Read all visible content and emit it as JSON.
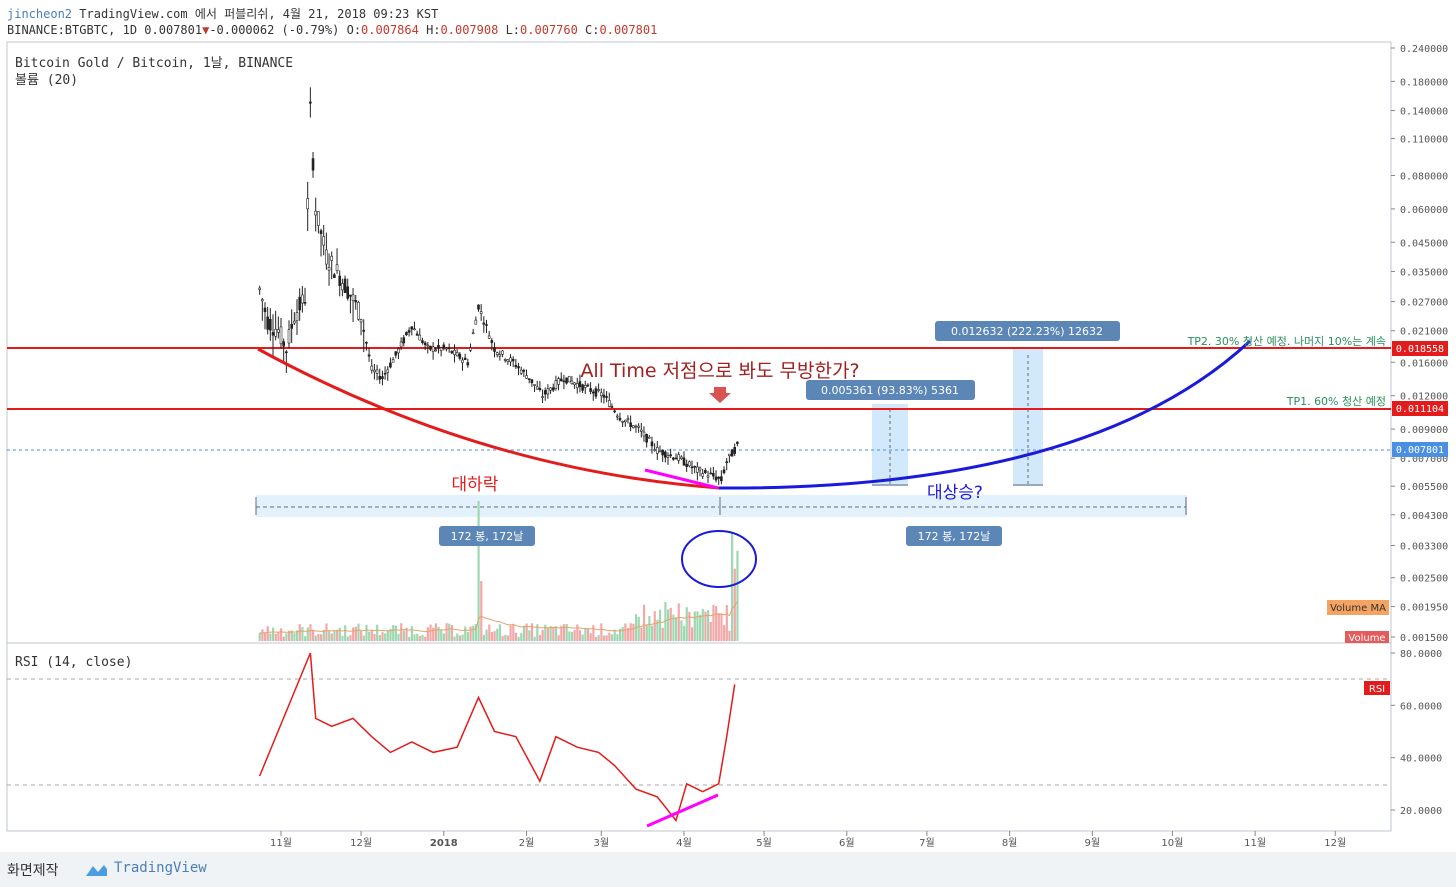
{
  "header": {
    "author": "jincheon2",
    "published": "TradingView.com 에서 퍼블리쉬, 4월 21, 2018 09:23 KST",
    "symbol": "BINANCE:BTGBTC, 1D",
    "last": "0.007801",
    "down_arrow": "▼",
    "change": "-0.000062 (-0.79%)",
    "o_label": "O:",
    "o": "0.007864",
    "h_label": "H:",
    "h": "0.007908",
    "l_label": "L:",
    "l": "0.007760",
    "c_label": "C:",
    "c": "0.007801"
  },
  "legend": {
    "title": "Bitcoin Gold / Bitcoin, 1날, BINANCE",
    "volume": "볼륨 (20)",
    "rsi": "RSI (14, close)"
  },
  "footer": {
    "made_with": "화면제작",
    "brand": "TradingView"
  },
  "colors": {
    "up": "#333333",
    "down": "#333333",
    "resistance": "#e31b1b",
    "curve_down": "#e31b1b",
    "curve_up": "#1a1adb",
    "rsi": "#e31b1b",
    "divergence": "#ff00ff",
    "measure": "#bfe0fa",
    "label_bg": "#5b86b6"
  },
  "chart_data": [
    {
      "type": "candlestick",
      "title": "Bitcoin Gold / Bitcoin, 1날, BINANCE",
      "y_scale": "log",
      "y_ticks": [
        "0.240000",
        "0.180000",
        "0.140000",
        "0.110000",
        "0.080000",
        "0.060000",
        "0.045000",
        "0.035000",
        "0.027000",
        "0.021000",
        "0.016000",
        "0.012000",
        "0.009000",
        "0.007000",
        "0.005500",
        "0.004300",
        "0.003300",
        "0.002500",
        "0.001950",
        "0.001500"
      ],
      "x_ticks": [
        "11월",
        "12월",
        "2018",
        "2월",
        "3월",
        "4월",
        "5월",
        "6월",
        "7월",
        "8월",
        "9월",
        "10월",
        "11월",
        "12월"
      ],
      "price_badges": [
        {
          "value": "0.018558",
          "color": "#e31b1b"
        },
        {
          "value": "0.011104",
          "color": "#e31b1b"
        },
        {
          "value": "0.007801",
          "color": "#4a90e2"
        }
      ],
      "horizontal_lines": [
        {
          "value": 0.018558,
          "label": "TP2. 30% 청산 예정. 나머지 10%는 계속"
        },
        {
          "value": 0.011104,
          "label": "TP1. 60% 청산 예정"
        }
      ],
      "annotations": {
        "question": "All Time 저점으로 봐도 무방한가?",
        "fall": "대하락",
        "rise": "대상승?",
        "range1": "172 봉, 172날",
        "range2": "172 봉, 172날",
        "measure1": "0.005361 (93.83%) 5361",
        "measure2": "0.012632 (222.23%) 12632",
        "volume_ma": "Volume MA",
        "volume": "Volume"
      },
      "price_path": [
        {
          "x": "2017-10-24",
          "y": 0.03
        },
        {
          "x": "2017-10-27",
          "y": 0.023
        },
        {
          "x": "2017-10-31",
          "y": 0.021
        },
        {
          "x": "2017-11-03",
          "y": 0.018
        },
        {
          "x": "2017-11-06",
          "y": 0.024
        },
        {
          "x": "2017-11-10",
          "y": 0.028
        },
        {
          "x": "2017-11-12",
          "y": 0.14
        },
        {
          "x": "2017-11-14",
          "y": 0.06
        },
        {
          "x": "2017-11-18",
          "y": 0.04
        },
        {
          "x": "2017-11-22",
          "y": 0.035
        },
        {
          "x": "2017-11-26",
          "y": 0.03
        },
        {
          "x": "2017-12-01",
          "y": 0.024
        },
        {
          "x": "2017-12-05",
          "y": 0.015
        },
        {
          "x": "2017-12-09",
          "y": 0.014
        },
        {
          "x": "2017-12-14",
          "y": 0.017
        },
        {
          "x": "2017-12-20",
          "y": 0.022
        },
        {
          "x": "2017-12-26",
          "y": 0.018
        },
        {
          "x": "2018-01-02",
          "y": 0.018
        },
        {
          "x": "2018-01-10",
          "y": 0.016
        },
        {
          "x": "2018-01-14",
          "y": 0.026
        },
        {
          "x": "2018-01-20",
          "y": 0.018
        },
        {
          "x": "2018-01-27",
          "y": 0.016
        },
        {
          "x": "2018-02-02",
          "y": 0.014
        },
        {
          "x": "2018-02-07",
          "y": 0.012
        },
        {
          "x": "2018-02-15",
          "y": 0.014
        },
        {
          "x": "2018-02-22",
          "y": 0.013
        },
        {
          "x": "2018-03-02",
          "y": 0.012
        },
        {
          "x": "2018-03-08",
          "y": 0.01
        },
        {
          "x": "2018-03-15",
          "y": 0.009
        },
        {
          "x": "2018-03-22",
          "y": 0.0075
        },
        {
          "x": "2018-03-30",
          "y": 0.007
        },
        {
          "x": "2018-04-06",
          "y": 0.0063
        },
        {
          "x": "2018-04-12",
          "y": 0.006
        },
        {
          "x": "2018-04-15",
          "y": 0.0058
        },
        {
          "x": "2018-04-17",
          "y": 0.0068
        },
        {
          "x": "2018-04-21",
          "y": 0.0078
        }
      ]
    },
    {
      "type": "line",
      "title": "RSI (14, close)",
      "series": [
        {
          "name": "RSI",
          "values": [
            {
              "x": "2017-10-24",
              "y": 33
            },
            {
              "x": "2017-11-12",
              "y": 80
            },
            {
              "x": "2017-11-14",
              "y": 55
            },
            {
              "x": "2017-11-20",
              "y": 52
            },
            {
              "x": "2017-11-28",
              "y": 55
            },
            {
              "x": "2017-12-05",
              "y": 48
            },
            {
              "x": "2017-12-12",
              "y": 42
            },
            {
              "x": "2017-12-20",
              "y": 46
            },
            {
              "x": "2017-12-28",
              "y": 42
            },
            {
              "x": "2018-01-06",
              "y": 44
            },
            {
              "x": "2018-01-14",
              "y": 63
            },
            {
              "x": "2018-01-20",
              "y": 50
            },
            {
              "x": "2018-01-28",
              "y": 48
            },
            {
              "x": "2018-02-06",
              "y": 31
            },
            {
              "x": "2018-02-12",
              "y": 48
            },
            {
              "x": "2018-02-20",
              "y": 44
            },
            {
              "x": "2018-02-28",
              "y": 42
            },
            {
              "x": "2018-03-06",
              "y": 37
            },
            {
              "x": "2018-03-14",
              "y": 28
            },
            {
              "x": "2018-03-22",
              "y": 25
            },
            {
              "x": "2018-03-29",
              "y": 16
            },
            {
              "x": "2018-04-02",
              "y": 30
            },
            {
              "x": "2018-04-08",
              "y": 27
            },
            {
              "x": "2018-04-14",
              "y": 30
            },
            {
              "x": "2018-04-17",
              "y": 48
            },
            {
              "x": "2018-04-20",
              "y": 68
            }
          ]
        }
      ],
      "y_ticks": [
        "80.0000",
        "60.0000",
        "40.0000",
        "20.0000"
      ],
      "ylim": [
        10,
        84
      ]
    }
  ]
}
